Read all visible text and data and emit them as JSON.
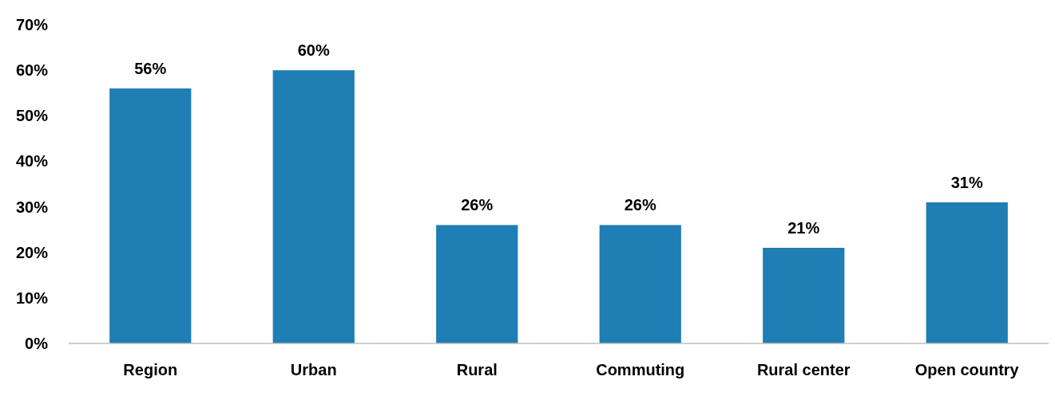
{
  "chart_data": {
    "type": "bar",
    "categories": [
      "Region",
      "Urban",
      "Rural",
      "Commuting",
      "Rural center",
      "Open country"
    ],
    "values": [
      56,
      60,
      26,
      26,
      21,
      31
    ],
    "color": "#1f7eb4",
    "value_labels": [
      "56%",
      "60%",
      "26%",
      "26%",
      "21%",
      "31%"
    ],
    "ylim": [
      0,
      70
    ],
    "yticks": [
      {
        "value": 0,
        "label": "0%"
      },
      {
        "value": 10,
        "label": "10%"
      },
      {
        "value": 20,
        "label": "20%"
      },
      {
        "value": 30,
        "label": "30%"
      },
      {
        "value": 40,
        "label": "40%"
      },
      {
        "value": 50,
        "label": "50%"
      },
      {
        "value": 60,
        "label": "60%"
      },
      {
        "value": 70,
        "label": "70%"
      }
    ],
    "grid": false
  }
}
